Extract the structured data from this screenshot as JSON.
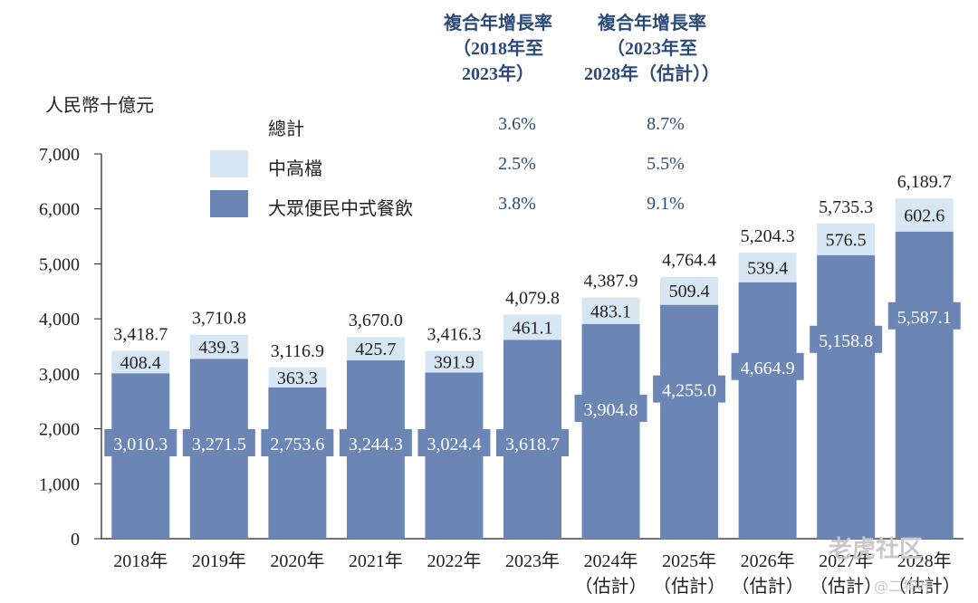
{
  "chart_data": {
    "type": "bar",
    "stacked": true,
    "unit_label": "人民幣十億元",
    "categories": [
      "2018年",
      "2019年",
      "2020年",
      "2021年",
      "2022年",
      "2023年",
      "2024年",
      "2025年",
      "2026年",
      "2027年",
      "2028年"
    ],
    "category_sub": [
      "",
      "",
      "",
      "",
      "",
      "",
      "（估計）",
      "（估計）",
      "（估計）",
      "（估計）",
      "（估計）"
    ],
    "series": [
      {
        "name": "大眾便民中式餐飲",
        "color": "#6b86b5",
        "values": [
          3010.3,
          3271.5,
          2753.6,
          3244.3,
          3024.4,
          3618.7,
          3904.8,
          4255.0,
          4664.9,
          5158.8,
          5587.1
        ],
        "labels": [
          "3,010.3",
          "3,271.5",
          "2,753.6",
          "3,244.3",
          "3,024.4",
          "3,618.7",
          "3,904.8",
          "4,255.0",
          "4,664.9",
          "5,158.8",
          "5,587.1"
        ]
      },
      {
        "name": "中高檔",
        "color": "#d6e6f3",
        "values": [
          408.4,
          439.3,
          363.3,
          425.7,
          391.9,
          461.1,
          483.1,
          509.4,
          539.4,
          576.5,
          602.6
        ],
        "labels": [
          "408.4",
          "439.3",
          "363.3",
          "425.7",
          "391.9",
          "461.1",
          "483.1",
          "509.4",
          "539.4",
          "576.5",
          "602.6"
        ]
      }
    ],
    "totals": [
      "3,418.7",
      "3,710.8",
      "3,116.9",
      "3,670.0",
      "3,416.3",
      "4,079.8",
      "4,387.9",
      "4,764.4",
      "5,204.3",
      "5,735.3",
      "6,189.7"
    ],
    "total_values": [
      3418.7,
      3710.8,
      3116.9,
      3670.0,
      3416.3,
      4079.8,
      4387.9,
      4764.4,
      5204.3,
      5735.3,
      6189.7
    ],
    "ylim": [
      0,
      7000
    ],
    "yticks": [
      0,
      1000,
      2000,
      3000,
      4000,
      5000,
      6000,
      7000
    ],
    "ytick_labels": [
      "0",
      "1,000",
      "2,000",
      "3,000",
      "4,000",
      "5,000",
      "6,000",
      "7,000"
    ],
    "legend_position": "top-left",
    "cagr_table": {
      "header_1": "複合年增長率\n（2018年至\n2023年）",
      "header_2": "複合年增長率\n（2023年至\n2028年（估計））",
      "rows": [
        {
          "name": "總計",
          "cagr_1": "3.6%",
          "cagr_2": "8.7%"
        },
        {
          "name": "中高檔",
          "cagr_1": "2.5%",
          "cagr_2": "5.5%"
        },
        {
          "name": "大眾便民中式餐飲",
          "cagr_1": "3.8%",
          "cagr_2": "9.1%"
        }
      ]
    }
  },
  "watermark": {
    "brand": "老虎社区",
    "user": "@二狗叶"
  }
}
